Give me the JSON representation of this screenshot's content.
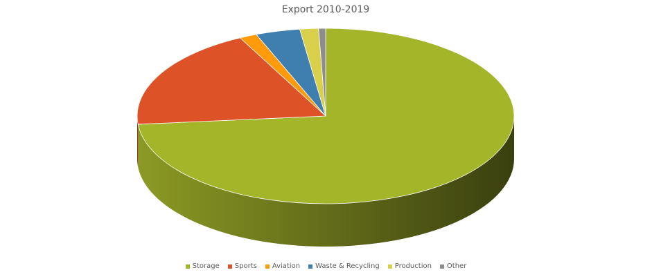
{
  "chart_data": {
    "type": "pie",
    "title": "Export 2010-2019",
    "categories": [
      "Storage",
      "Sports",
      "Aviation",
      "Waste & Recycling",
      "Production",
      "Other"
    ],
    "values": [
      73.5,
      19,
      1.5,
      3.8,
      1.6,
      0.6
    ],
    "colors": [
      "#a5b52a",
      "#dd5227",
      "#ff9a0a",
      "#3f7fb0",
      "#d8cf4a",
      "#8c8c8c"
    ],
    "legend": "bottom"
  }
}
